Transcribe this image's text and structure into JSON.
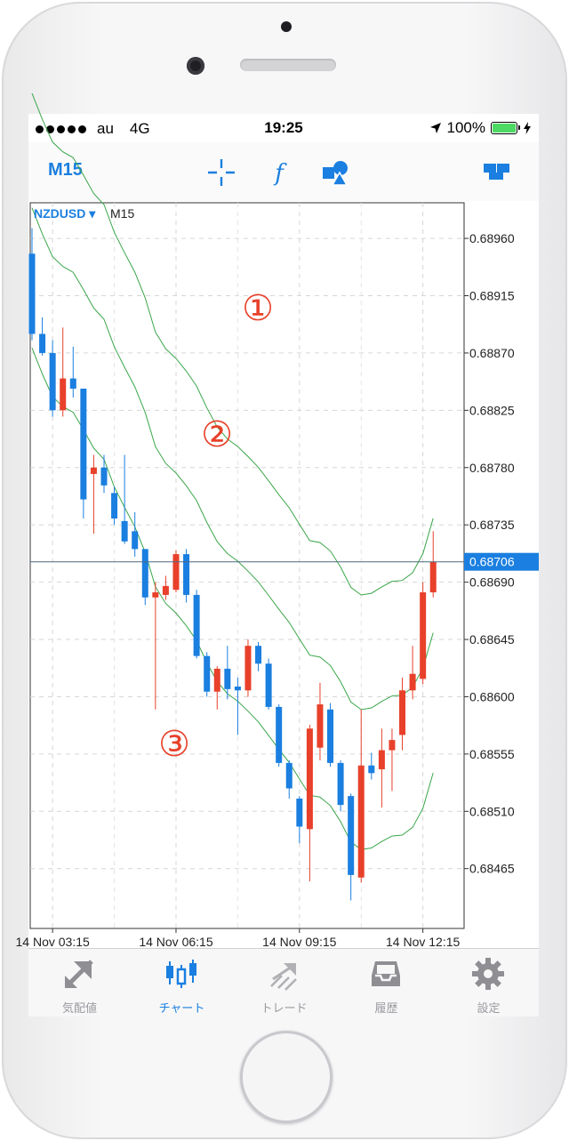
{
  "status_bar": {
    "carrier": "au",
    "network": "4G",
    "time": "19:25",
    "battery": "100%"
  },
  "toolbar": {
    "timeframe": "M15",
    "icons": [
      "crosshair-icon",
      "function-icon",
      "objects-icon",
      "layout-icon"
    ]
  },
  "chart": {
    "symbol": "NZDUSD ▾",
    "timeframe": "M15",
    "current_price": "0.68706",
    "annotations": [
      "①",
      "②",
      "③"
    ]
  },
  "chart_data": {
    "type": "candlestick",
    "symbol": "NZDUSD",
    "timeframe": "M15",
    "y_ticks": [
      "0.68960",
      "0.68915",
      "0.68870",
      "0.68825",
      "0.68780",
      "0.68735",
      "0.68690",
      "0.68645",
      "0.68600",
      "0.68555",
      "0.68510",
      "0.68465"
    ],
    "x_ticks": [
      "14 Nov 03:15",
      "14 Nov 06:15",
      "14 Nov 09:15",
      "14 Nov 12:15"
    ],
    "ylim": [
      0.68418,
      0.68988
    ],
    "current_price": 0.68706,
    "bullish_color": "#e8402a",
    "bearish_color": "#1a7fe0",
    "candles": [
      {
        "o": 0.68948,
        "h": 0.68968,
        "l": 0.6888,
        "c": 0.68885
      },
      {
        "o": 0.68885,
        "h": 0.68898,
        "l": 0.68868,
        "c": 0.6887
      },
      {
        "o": 0.6887,
        "h": 0.6888,
        "l": 0.6882,
        "c": 0.68825
      },
      {
        "o": 0.68825,
        "h": 0.6889,
        "l": 0.6882,
        "c": 0.6885
      },
      {
        "o": 0.6885,
        "h": 0.68875,
        "l": 0.68835,
        "c": 0.68842
      },
      {
        "o": 0.68842,
        "h": 0.68842,
        "l": 0.6874,
        "c": 0.68755
      },
      {
        "o": 0.68775,
        "h": 0.6879,
        "l": 0.68728,
        "c": 0.6878
      },
      {
        "o": 0.6878,
        "h": 0.6879,
        "l": 0.6876,
        "c": 0.68766
      },
      {
        "o": 0.6876,
        "h": 0.68765,
        "l": 0.68735,
        "c": 0.6874
      },
      {
        "o": 0.68738,
        "h": 0.6879,
        "l": 0.6872,
        "c": 0.68722
      },
      {
        "o": 0.6873,
        "h": 0.68745,
        "l": 0.6871,
        "c": 0.68716
      },
      {
        "o": 0.68716,
        "h": 0.68716,
        "l": 0.68672,
        "c": 0.68678
      },
      {
        "o": 0.68678,
        "h": 0.6869,
        "l": 0.6859,
        "c": 0.68682
      },
      {
        "o": 0.6868,
        "h": 0.68695,
        "l": 0.68676,
        "c": 0.68687
      },
      {
        "o": 0.68684,
        "h": 0.68715,
        "l": 0.68682,
        "c": 0.68712
      },
      {
        "o": 0.68712,
        "h": 0.68716,
        "l": 0.68674,
        "c": 0.6868
      },
      {
        "o": 0.6868,
        "h": 0.68684,
        "l": 0.6863,
        "c": 0.68632
      },
      {
        "o": 0.68632,
        "h": 0.68635,
        "l": 0.686,
        "c": 0.68604
      },
      {
        "o": 0.68604,
        "h": 0.68624,
        "l": 0.6859,
        "c": 0.68622
      },
      {
        "o": 0.68622,
        "h": 0.6864,
        "l": 0.68598,
        "c": 0.68606
      },
      {
        "o": 0.68608,
        "h": 0.68615,
        "l": 0.6857,
        "c": 0.68605
      },
      {
        "o": 0.68605,
        "h": 0.68645,
        "l": 0.686,
        "c": 0.6864
      },
      {
        "o": 0.6864,
        "h": 0.68643,
        "l": 0.6862,
        "c": 0.68626
      },
      {
        "o": 0.68626,
        "h": 0.6863,
        "l": 0.6859,
        "c": 0.68592
      },
      {
        "o": 0.68592,
        "h": 0.68594,
        "l": 0.68545,
        "c": 0.68548
      },
      {
        "o": 0.68548,
        "h": 0.6855,
        "l": 0.6852,
        "c": 0.68528
      },
      {
        "o": 0.6852,
        "h": 0.68522,
        "l": 0.68485,
        "c": 0.68498
      },
      {
        "o": 0.68496,
        "h": 0.68578,
        "l": 0.68455,
        "c": 0.68575
      },
      {
        "o": 0.6856,
        "h": 0.68611,
        "l": 0.6855,
        "c": 0.68594
      },
      {
        "o": 0.6859,
        "h": 0.68595,
        "l": 0.68545,
        "c": 0.68548
      },
      {
        "o": 0.68548,
        "h": 0.6855,
        "l": 0.6851,
        "c": 0.68515
      },
      {
        "o": 0.68522,
        "h": 0.68524,
        "l": 0.6844,
        "c": 0.6846
      },
      {
        "o": 0.68458,
        "h": 0.6859,
        "l": 0.68454,
        "c": 0.68546
      },
      {
        "o": 0.68546,
        "h": 0.68556,
        "l": 0.68535,
        "c": 0.6854
      },
      {
        "o": 0.68543,
        "h": 0.68575,
        "l": 0.68513,
        "c": 0.68558
      },
      {
        "o": 0.68558,
        "h": 0.68575,
        "l": 0.68526,
        "c": 0.68566
      },
      {
        "o": 0.6857,
        "h": 0.68615,
        "l": 0.68558,
        "c": 0.68605
      },
      {
        "o": 0.68605,
        "h": 0.6864,
        "l": 0.68598,
        "c": 0.68618
      },
      {
        "o": 0.68614,
        "h": 0.6869,
        "l": 0.6861,
        "c": 0.68682
      },
      {
        "o": 0.68682,
        "h": 0.6873,
        "l": 0.68678,
        "c": 0.68706
      }
    ],
    "envelope_lines": {
      "upper": [
        null,
        null,
        null,
        null,
        null,
        null,
        null,
        null,
        null,
        null,
        null,
        null,
        null,
        null,
        null,
        null,
        null,
        null,
        null,
        null,
        null,
        null,
        null,
        null,
        null,
        null,
        null,
        null,
        null,
        null,
        null,
        null,
        null,
        null,
        null,
        null,
        null,
        null,
        null,
        null
      ],
      "note": ""
    },
    "grid": true
  },
  "tabs": [
    {
      "label": "気配値",
      "icon": "quotes-icon",
      "active": false
    },
    {
      "label": "チャート",
      "icon": "chart-icon",
      "active": true
    },
    {
      "label": "トレード",
      "icon": "trade-icon",
      "active": false
    },
    {
      "label": "履歴",
      "icon": "history-icon",
      "active": false
    },
    {
      "label": "設定",
      "icon": "settings-icon",
      "active": false
    }
  ]
}
